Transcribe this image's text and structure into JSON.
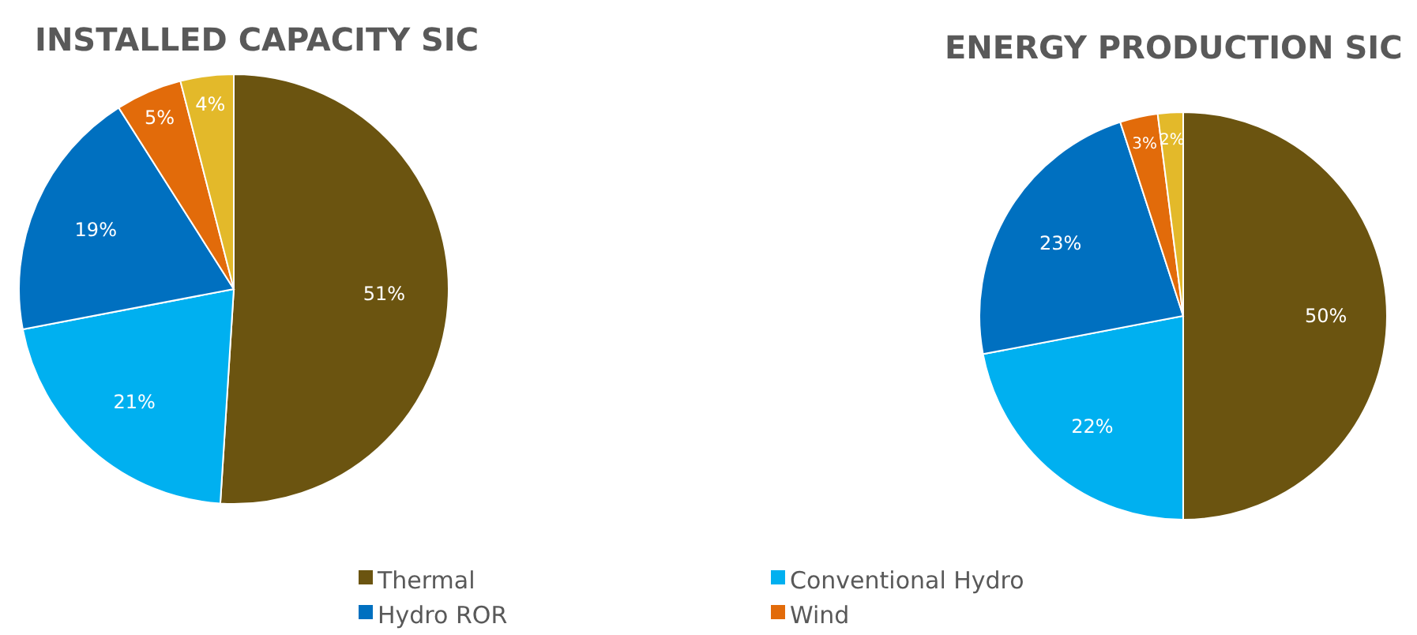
{
  "chart_data": [
    {
      "type": "pie",
      "title": "INSTALLED CAPACITY SIC",
      "categories": [
        "Thermal",
        "Conventional Hydro",
        "Hydro ROR",
        "Wind",
        null
      ],
      "values": [
        51,
        21,
        19,
        5,
        4
      ],
      "value_labels": [
        "51%",
        "21%",
        "19%",
        "5%",
        "4%"
      ],
      "colors": [
        "#6b5410",
        "#00b0f0",
        "#0070c0",
        "#e26b0a",
        "#e3b92a"
      ],
      "legend": "bottom"
    },
    {
      "type": "pie",
      "title": "ENERGY PRODUCTION SIC",
      "categories": [
        null,
        null,
        null,
        null,
        null
      ],
      "values": [
        50,
        22,
        23,
        3,
        2
      ],
      "value_labels": [
        "50%",
        "22%",
        "23%",
        "3%",
        "2%"
      ],
      "colors": [
        "#6b5410",
        "#00b0f0",
        "#0070c0",
        "#e26b0a",
        "#e3b92a"
      ]
    }
  ]
}
